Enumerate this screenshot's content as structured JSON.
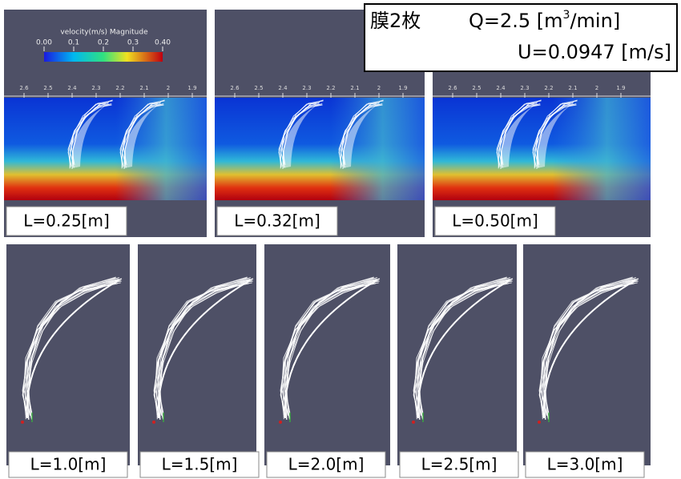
{
  "header": {
    "membranes": "膜2枚",
    "flow_rate": {
      "prefix": "Q=2.5 [m",
      "superscript": "3",
      "suffix": "/min]"
    },
    "velocity": "U=0.0947 [m/s]"
  },
  "colorbar": {
    "title": "velocity(m/s) Magnitude",
    "tick_labels": [
      "0.00",
      "0.1",
      "0.2",
      "0.3",
      "0.40"
    ]
  },
  "ruler_labels": [
    "2.6",
    "2.5",
    "2.4",
    "2.3",
    "2.2",
    "2.1",
    "2",
    "1.9"
  ],
  "top_panels": [
    {
      "label": "L=0.25[m]"
    },
    {
      "label": "L=0.32[m]"
    },
    {
      "label": "L=0.50[m]"
    }
  ],
  "bottom_panels": [
    {
      "label": "L=1.0[m]"
    },
    {
      "label": "L=1.5[m]"
    },
    {
      "label": "L=2.0[m]"
    },
    {
      "label": "L=2.5[m]"
    },
    {
      "label": "L=3.0[m]"
    }
  ]
}
